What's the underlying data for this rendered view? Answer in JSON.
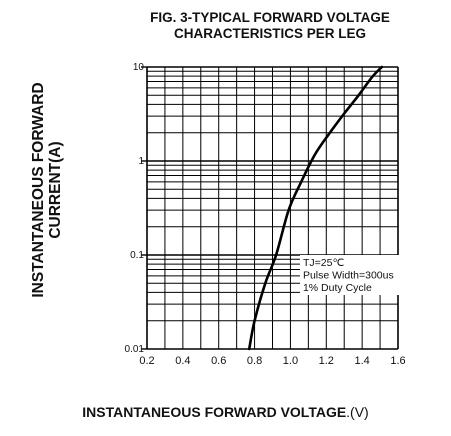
{
  "chart_data": {
    "type": "line",
    "title_lines": [
      "FIG. 3-TYPICAL FORWARD VOLTAGE",
      "CHARACTERISTICS PER LEG"
    ],
    "ylabel_lines": [
      "INSTANTANEOUS FORWARD",
      "CURRENT(A)"
    ],
    "xlabel": "INSTANTANEOUS FORWARD VOLTAGE",
    "xlabel_unit": ".(V)",
    "x_ticks": [
      "0.2",
      "0.4",
      "0.6",
      "0.8",
      "1.0",
      "1.2",
      "1.4",
      "1.6"
    ],
    "y_ticks": [
      "10",
      "1",
      "0.1",
      "0.01"
    ],
    "xlim": [
      0.2,
      1.6
    ],
    "ylim": [
      0.01,
      10
    ],
    "y_scale": "log",
    "grid": true,
    "annotation": [
      "TJ=25℃",
      "Pulse Width=300us",
      "1% Duty Cycle"
    ],
    "series": [
      {
        "x": [
          0.77,
          0.8,
          0.86,
          0.92,
          0.99,
          1.06,
          1.14,
          1.22,
          1.3,
          1.38,
          1.46,
          1.51
        ],
        "values": [
          0.01,
          0.02,
          0.05,
          0.1,
          0.3,
          0.6,
          1.2,
          2.0,
          3.2,
          5.0,
          8.0,
          10.0
        ]
      }
    ]
  }
}
